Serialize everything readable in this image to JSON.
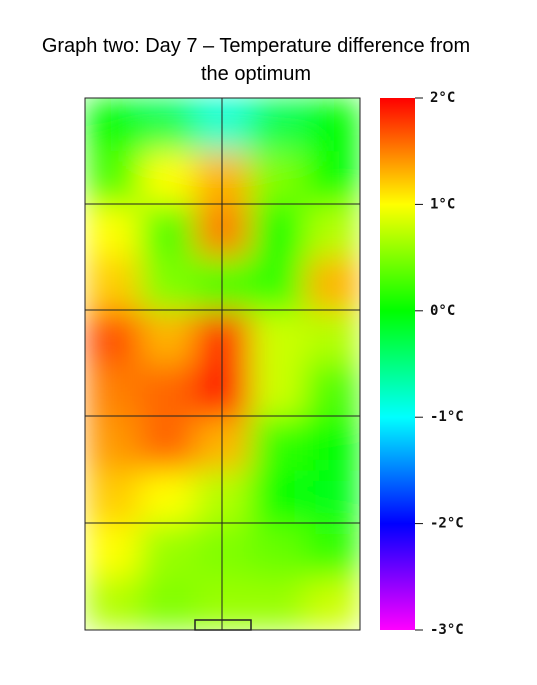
{
  "chart_data": {
    "type": "heatmap",
    "title": "Graph two: Day 7 – Temperature difference from the optimum",
    "values": [
      [
        0,
        -0.3,
        -0.8,
        -0.3,
        0
      ],
      [
        0.3,
        1,
        1.3,
        0.5,
        0
      ],
      [
        1,
        0.3,
        1.5,
        0,
        0.7
      ],
      [
        1.2,
        0.5,
        0.3,
        0.2,
        1.3
      ],
      [
        1.7,
        1.3,
        1.8,
        0.8,
        0.7
      ],
      [
        1.5,
        1.6,
        1.9,
        0.8,
        0.3
      ],
      [
        1.4,
        1.6,
        1.3,
        0.2,
        0
      ],
      [
        1.2,
        1,
        0.7,
        0,
        -0.1
      ],
      [
        1,
        0.6,
        0.5,
        0.4,
        0.2
      ],
      [
        0.7,
        0.5,
        0.6,
        0.6,
        0.8
      ]
    ],
    "ylim": [
      -3,
      2
    ],
    "yticks": [
      {
        "value": 2,
        "label": "2°C"
      },
      {
        "value": 1,
        "label": "1°C"
      },
      {
        "value": 0,
        "label": "0°C"
      },
      {
        "value": -1,
        "label": "-1°C"
      },
      {
        "value": -2,
        "label": "-2°C"
      },
      {
        "value": -3,
        "label": "-3°C"
      }
    ]
  }
}
